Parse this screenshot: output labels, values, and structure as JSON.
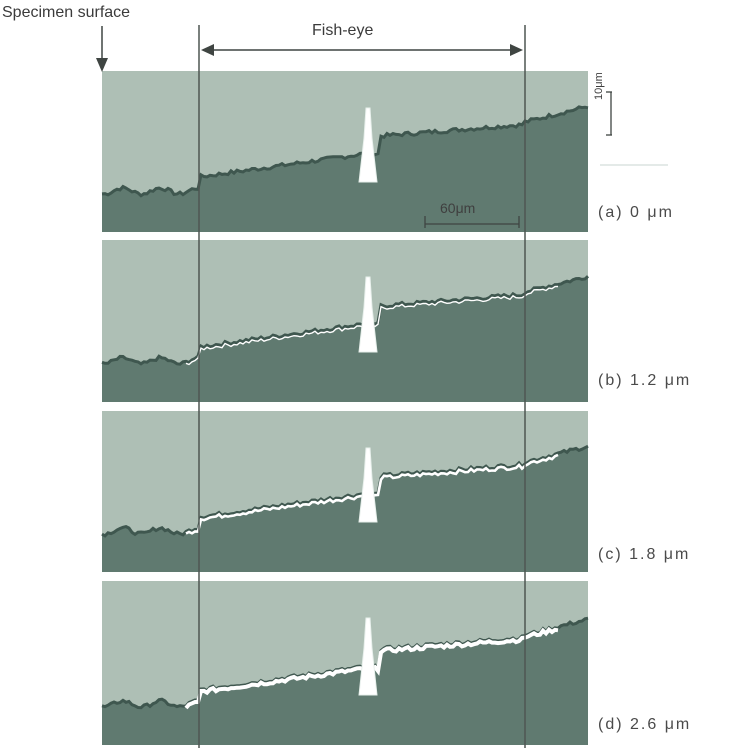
{
  "labels": {
    "specimen_surface": "Specimen surface",
    "fish_eye": "Fish-eye",
    "scale_60": "60μm",
    "scale_10": "10μm"
  },
  "panels": [
    {
      "label": "(a) 0 μm",
      "depth_um": 0
    },
    {
      "label": "(b) 1.2 μm",
      "depth_um": 1.2
    },
    {
      "label": "(c) 1.8 μm",
      "depth_um": 1.8
    },
    {
      "label": "(d) 2.6 μm",
      "depth_um": 2.6
    }
  ],
  "colors": {
    "upper_region": "#aebfb5",
    "lower_region": "#607a70",
    "profile_dark": "#3f574f",
    "profile_bright": "#ffffff",
    "line": "#555b58"
  }
}
